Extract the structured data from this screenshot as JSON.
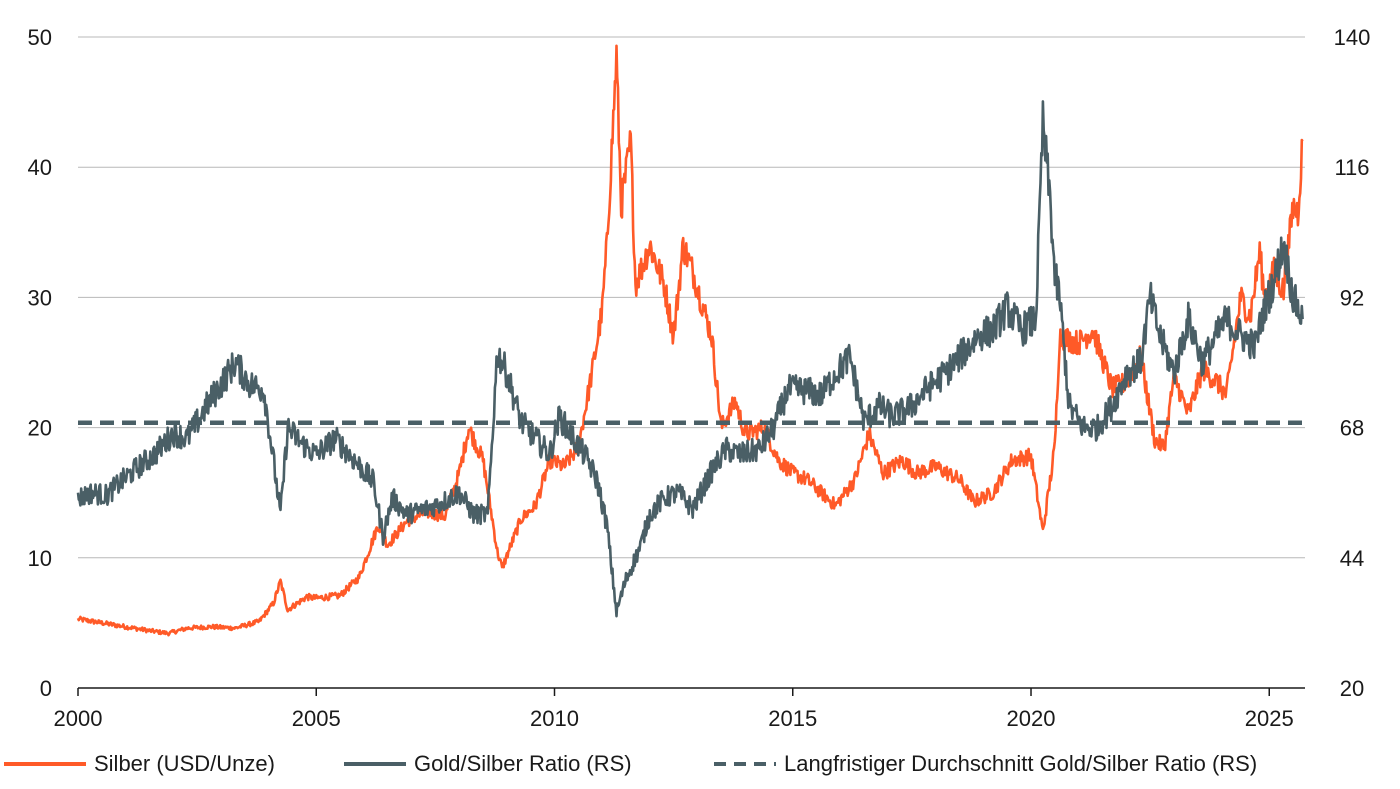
{
  "chart_data": {
    "type": "line",
    "x_range": [
      2000,
      2025.75
    ],
    "x_ticks": [
      "2000",
      "2005",
      "2010",
      "2015",
      "2020",
      "2025"
    ],
    "y_left": {
      "range": [
        0,
        50
      ],
      "ticks": [
        "0",
        "10",
        "20",
        "30",
        "40",
        "50"
      ]
    },
    "y_right": {
      "range": [
        20,
        140
      ],
      "ticks": [
        "20",
        "44",
        "68",
        "92",
        "116",
        "140"
      ]
    },
    "grid": true,
    "legend_position": "bottom",
    "series": [
      {
        "name": "Silber (USD/Unze)",
        "axis": "left",
        "color": "#ff5a28",
        "style": "solid",
        "points": [
          [
            2000.0,
            5.3
          ],
          [
            2000.5,
            5.0
          ],
          [
            2001.0,
            4.7
          ],
          [
            2001.5,
            4.4
          ],
          [
            2001.9,
            4.2
          ],
          [
            2002.3,
            4.6
          ],
          [
            2002.8,
            4.7
          ],
          [
            2003.3,
            4.6
          ],
          [
            2003.8,
            5.1
          ],
          [
            2004.1,
            6.5
          ],
          [
            2004.25,
            8.2
          ],
          [
            2004.4,
            6.0
          ],
          [
            2004.8,
            7.0
          ],
          [
            2005.0,
            6.9
          ],
          [
            2005.5,
            7.1
          ],
          [
            2005.9,
            8.5
          ],
          [
            2006.3,
            12.5
          ],
          [
            2006.5,
            11.0
          ],
          [
            2006.9,
            12.8
          ],
          [
            2007.3,
            13.5
          ],
          [
            2007.7,
            13.2
          ],
          [
            2008.0,
            16.5
          ],
          [
            2008.2,
            20.0
          ],
          [
            2008.5,
            17.5
          ],
          [
            2008.8,
            10.5
          ],
          [
            2008.9,
            9.2
          ],
          [
            2009.3,
            13.0
          ],
          [
            2009.6,
            14.0
          ],
          [
            2009.9,
            17.5
          ],
          [
            2010.2,
            17.0
          ],
          [
            2010.5,
            18.5
          ],
          [
            2010.8,
            24.5
          ],
          [
            2011.0,
            29.0
          ],
          [
            2011.1,
            34.0
          ],
          [
            2011.3,
            48.5
          ],
          [
            2011.4,
            37.0
          ],
          [
            2011.6,
            42.0
          ],
          [
            2011.7,
            31.0
          ],
          [
            2012.0,
            34.0
          ],
          [
            2012.3,
            31.0
          ],
          [
            2012.5,
            27.0
          ],
          [
            2012.7,
            34.0
          ],
          [
            2012.9,
            32.0
          ],
          [
            2013.3,
            27.0
          ],
          [
            2013.5,
            20.0
          ],
          [
            2013.8,
            22.0
          ],
          [
            2014.0,
            19.5
          ],
          [
            2014.4,
            20.0
          ],
          [
            2014.7,
            17.5
          ],
          [
            2015.0,
            16.5
          ],
          [
            2015.3,
            16.0
          ],
          [
            2015.6,
            15.0
          ],
          [
            2015.9,
            14.0
          ],
          [
            2016.3,
            16.0
          ],
          [
            2016.6,
            19.5
          ],
          [
            2016.9,
            16.5
          ],
          [
            2017.3,
            17.5
          ],
          [
            2017.6,
            16.5
          ],
          [
            2018.0,
            17.0
          ],
          [
            2018.5,
            16.0
          ],
          [
            2018.8,
            14.3
          ],
          [
            2019.2,
            15.0
          ],
          [
            2019.6,
            17.5
          ],
          [
            2020.0,
            17.8
          ],
          [
            2020.25,
            12.0
          ],
          [
            2020.5,
            18.5
          ],
          [
            2020.6,
            27.0
          ],
          [
            2021.0,
            26.5
          ],
          [
            2021.3,
            27.5
          ],
          [
            2021.7,
            23.0
          ],
          [
            2022.0,
            23.5
          ],
          [
            2022.3,
            25.5
          ],
          [
            2022.6,
            19.0
          ],
          [
            2022.8,
            18.5
          ],
          [
            2023.0,
            24.0
          ],
          [
            2023.3,
            21.0
          ],
          [
            2023.6,
            24.5
          ],
          [
            2023.9,
            23.5
          ],
          [
            2024.1,
            22.5
          ],
          [
            2024.4,
            30.0
          ],
          [
            2024.6,
            28.5
          ],
          [
            2024.8,
            33.5
          ],
          [
            2024.9,
            30.0
          ],
          [
            2025.1,
            32.0
          ],
          [
            2025.3,
            30.5
          ],
          [
            2025.5,
            37.0
          ],
          [
            2025.6,
            36.5
          ],
          [
            2025.7,
            42.0
          ]
        ]
      },
      {
        "name": "Gold/Silber Ratio (RS)",
        "axis": "right",
        "color": "#4a5f66",
        "style": "solid",
        "points": [
          [
            2000.0,
            55.0
          ],
          [
            2000.3,
            56.0
          ],
          [
            2000.6,
            55.5
          ],
          [
            2000.9,
            58.0
          ],
          [
            2001.3,
            61.0
          ],
          [
            2001.6,
            63.0
          ],
          [
            2002.0,
            67.0
          ],
          [
            2002.3,
            66.0
          ],
          [
            2002.7,
            72.0
          ],
          [
            2003.0,
            76.0
          ],
          [
            2003.3,
            80.0
          ],
          [
            2003.6,
            76.0
          ],
          [
            2003.9,
            75.0
          ],
          [
            2004.1,
            62.0
          ],
          [
            2004.25,
            52.0
          ],
          [
            2004.4,
            68.0
          ],
          [
            2004.7,
            65.0
          ],
          [
            2005.0,
            63.0
          ],
          [
            2005.4,
            66.0
          ],
          [
            2005.8,
            62.0
          ],
          [
            2006.2,
            58.0
          ],
          [
            2006.4,
            48.0
          ],
          [
            2006.6,
            55.0
          ],
          [
            2006.9,
            52.0
          ],
          [
            2007.3,
            53.0
          ],
          [
            2007.6,
            54.0
          ],
          [
            2008.0,
            56.0
          ],
          [
            2008.3,
            52.0
          ],
          [
            2008.6,
            52.0
          ],
          [
            2008.8,
            82.0
          ],
          [
            2009.0,
            78.0
          ],
          [
            2009.3,
            69.0
          ],
          [
            2009.6,
            66.0
          ],
          [
            2009.9,
            63.0
          ],
          [
            2010.1,
            70.0
          ],
          [
            2010.4,
            66.0
          ],
          [
            2010.7,
            62.0
          ],
          [
            2010.9,
            58.0
          ],
          [
            2011.1,
            50.0
          ],
          [
            2011.3,
            34.0
          ],
          [
            2011.5,
            40.0
          ],
          [
            2011.8,
            46.0
          ],
          [
            2012.0,
            52.0
          ],
          [
            2012.3,
            55.0
          ],
          [
            2012.6,
            56.0
          ],
          [
            2012.9,
            53.0
          ],
          [
            2013.3,
            60.0
          ],
          [
            2013.6,
            64.0
          ],
          [
            2013.9,
            63.0
          ],
          [
            2014.3,
            64.0
          ],
          [
            2014.6,
            68.0
          ],
          [
            2014.9,
            75.0
          ],
          [
            2015.2,
            75.0
          ],
          [
            2015.6,
            74.0
          ],
          [
            2015.9,
            78.0
          ],
          [
            2016.2,
            81.0
          ],
          [
            2016.5,
            69.0
          ],
          [
            2016.8,
            72.0
          ],
          [
            2017.1,
            70.0
          ],
          [
            2017.5,
            72.0
          ],
          [
            2017.8,
            75.0
          ],
          [
            2018.2,
            78.0
          ],
          [
            2018.6,
            82.0
          ],
          [
            2018.9,
            85.0
          ],
          [
            2019.2,
            86.0
          ],
          [
            2019.5,
            90.0
          ],
          [
            2019.8,
            86.0
          ],
          [
            2020.1,
            88.0
          ],
          [
            2020.25,
            124.0
          ],
          [
            2020.4,
            110.0
          ],
          [
            2020.5,
            96.0
          ],
          [
            2020.6,
            92.0
          ],
          [
            2020.8,
            72.0
          ],
          [
            2021.1,
            68.0
          ],
          [
            2021.4,
            68.0
          ],
          [
            2021.7,
            72.0
          ],
          [
            2022.0,
            78.0
          ],
          [
            2022.3,
            80.0
          ],
          [
            2022.5,
            92.0
          ],
          [
            2022.7,
            85.0
          ],
          [
            2023.0,
            78.0
          ],
          [
            2023.3,
            88.0
          ],
          [
            2023.6,
            80.0
          ],
          [
            2023.9,
            85.0
          ],
          [
            2024.1,
            88.0
          ],
          [
            2024.4,
            85.0
          ],
          [
            2024.7,
            83.0
          ],
          [
            2024.9,
            90.0
          ],
          [
            2025.1,
            95.0
          ],
          [
            2025.3,
            102.0
          ],
          [
            2025.5,
            92.0
          ],
          [
            2025.7,
            88.0
          ]
        ]
      },
      {
        "name": "Langfristiger Durchschnitt Gold/Silber Ratio (RS)",
        "axis": "right",
        "color": "#4a5f66",
        "style": "dashed",
        "points": [
          [
            2000.0,
            68.9
          ],
          [
            2025.75,
            68.9
          ]
        ]
      }
    ]
  }
}
